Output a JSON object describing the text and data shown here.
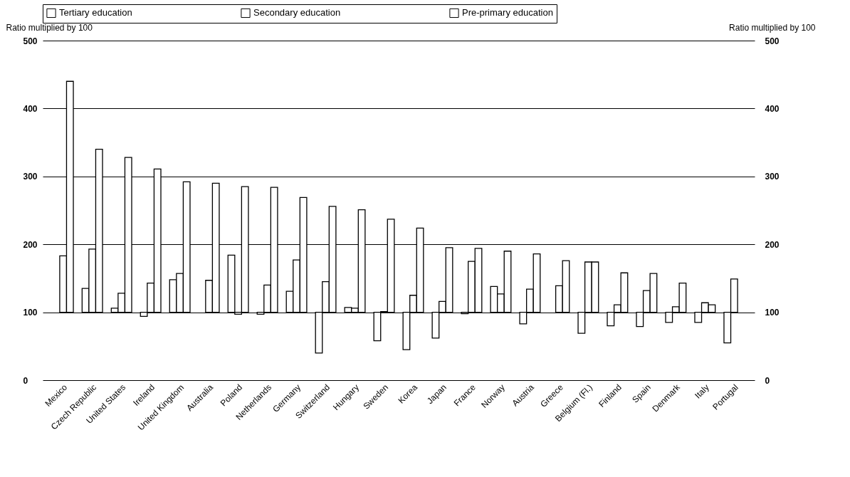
{
  "chart_data": {
    "type": "bar",
    "ylabel": "Ratio multiplied by 100",
    "y2label": "Ratio multiplied by 100",
    "categories": [
      "Mexico",
      "Czech Republic",
      "United States",
      "Ireland",
      "United Kingdom",
      "Australia",
      "Poland",
      "Netherlands",
      "Germany",
      "Switzerland",
      "Hungary",
      "Sweden",
      "Korea",
      "Japan",
      "France",
      "Norway",
      "Austria",
      "Greece",
      "Belgium (Fl.)",
      "Finland",
      "Spain",
      "Denmark",
      "Italy",
      "Portugal"
    ],
    "series": [
      {
        "name": "Tertiary education",
        "color": "#ffffff",
        "base": [
          null,
          100,
          100,
          100,
          100,
          null,
          100,
          100,
          100,
          100,
          100,
          100,
          100,
          100,
          100,
          100,
          100,
          null,
          100,
          100,
          100,
          100,
          100,
          100
        ],
        "values": [
          null,
          35,
          6,
          -6,
          48,
          null,
          84,
          -3,
          31,
          -60,
          7,
          -42,
          -55,
          -38,
          -2,
          38,
          -17,
          null,
          -31,
          -20,
          -21,
          -15,
          -15,
          -45
        ]
      },
      {
        "name": "Secondary education",
        "color": "#ffffff",
        "base": [
          100,
          100,
          100,
          100,
          100,
          100,
          100,
          100,
          100,
          100,
          100,
          100,
          100,
          100,
          100,
          100,
          100,
          100,
          100,
          100,
          100,
          100,
          100,
          100
        ],
        "values": [
          83,
          93,
          28,
          43,
          57,
          47,
          -3,
          40,
          77,
          45,
          6,
          1,
          25,
          16,
          75,
          27,
          34,
          39,
          74,
          11,
          32,
          8,
          14,
          49
        ]
      },
      {
        "name": "Pre-primary education",
        "color": "#ffffff",
        "base": [
          100,
          100,
          100,
          100,
          100,
          100,
          100,
          100,
          100,
          100,
          100,
          100,
          100,
          100,
          100,
          100,
          100,
          100,
          100,
          100,
          100,
          100,
          100,
          null
        ],
        "values": [
          340,
          240,
          228,
          211,
          192,
          190,
          185,
          184,
          169,
          156,
          151,
          137,
          124,
          95,
          94,
          90,
          86,
          76,
          74,
          58,
          57,
          43,
          11,
          null
        ]
      }
    ],
    "ylim": [
      0,
      500
    ],
    "yticks": [
      0,
      100,
      200,
      300,
      400,
      500
    ],
    "y2lim": [
      0,
      500
    ],
    "y2ticks": [
      0,
      100,
      200,
      300,
      400,
      500
    ],
    "grid": "y",
    "legend": "top"
  }
}
